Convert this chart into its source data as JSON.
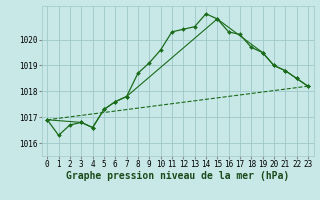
{
  "bg_color": "#c8e8e8",
  "grid_color": "#a0c8c8",
  "line_color": "#1a6b1a",
  "marker_color": "#1a6b1a",
  "xlabel": "Graphe pression niveau de la mer (hPa)",
  "xlabel_fontsize": 7,
  "tick_fontsize": 5.5,
  "ylabel_ticks": [
    1016,
    1017,
    1018,
    1019,
    1020
  ],
  "xlim": [
    -0.5,
    23.5
  ],
  "ylim": [
    1015.5,
    1021.3
  ],
  "series1_x": [
    0,
    1,
    2,
    3,
    4,
    5,
    6,
    7,
    8,
    9,
    10,
    11,
    12,
    13,
    14,
    15,
    16,
    17,
    18,
    19,
    20,
    21,
    22,
    23
  ],
  "series1_y": [
    1016.9,
    1016.3,
    1016.7,
    1016.8,
    1016.6,
    1017.3,
    1017.6,
    1017.8,
    1018.7,
    1019.1,
    1019.6,
    1020.3,
    1020.4,
    1020.5,
    1021.0,
    1020.8,
    1020.3,
    1020.2,
    1019.7,
    1019.5,
    1019.0,
    1018.8,
    1018.5,
    1018.2
  ],
  "series2_x": [
    0,
    23
  ],
  "series2_y": [
    1016.9,
    1018.2
  ],
  "series3_x": [
    0,
    3,
    4,
    5,
    6,
    7,
    15,
    19,
    20,
    21,
    22,
    23
  ],
  "series3_y": [
    1016.9,
    1016.8,
    1016.6,
    1017.3,
    1017.6,
    1017.8,
    1020.8,
    1019.5,
    1019.0,
    1018.8,
    1018.5,
    1018.2
  ]
}
